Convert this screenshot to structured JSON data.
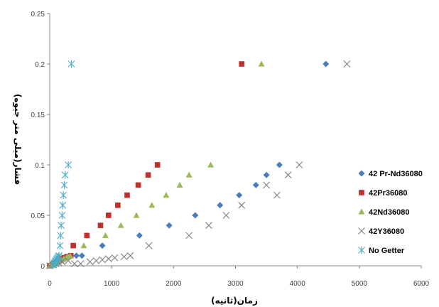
{
  "chart_data": {
    "type": "scatter",
    "xlabel": "زمان(ثانیه)",
    "ylabel": "فشار(میلی متر جیوه)",
    "xlim": [
      0,
      6000
    ],
    "ylim": [
      0,
      0.25
    ],
    "x_ticks": [
      "0",
      "1000",
      "2000",
      "3000",
      "4000",
      "5000",
      "6000"
    ],
    "y_ticks": [
      "0",
      "0.05",
      "0.1",
      "0.15",
      "0.2",
      "0.25"
    ],
    "grid": false,
    "legend_position": "right",
    "series": [
      {
        "name": "42 Pr-Nd36080",
        "color": "#4A7EBB",
        "marker": "diamond",
        "points": [
          [
            0,
            0
          ],
          [
            20,
            0.001
          ],
          [
            40,
            0.002
          ],
          [
            60,
            0.003
          ],
          [
            80,
            0.004
          ],
          [
            100,
            0.005
          ],
          [
            130,
            0.006
          ],
          [
            160,
            0.007
          ],
          [
            200,
            0.008
          ],
          [
            250,
            0.009
          ],
          [
            330,
            0.01
          ],
          [
            430,
            0.01
          ],
          [
            520,
            0.01
          ],
          [
            850,
            0.02
          ],
          [
            1450,
            0.03
          ],
          [
            1930,
            0.04
          ],
          [
            2350,
            0.05
          ],
          [
            2750,
            0.06
          ],
          [
            3060,
            0.07
          ],
          [
            3330,
            0.08
          ],
          [
            3500,
            0.09
          ],
          [
            3710,
            0.1
          ],
          [
            4460,
            0.2
          ]
        ]
      },
      {
        "name": "42Pr36080",
        "color": "#C0312E",
        "marker": "square",
        "points": [
          [
            0,
            0
          ],
          [
            40,
            0.001
          ],
          [
            70,
            0.002
          ],
          [
            100,
            0.003
          ],
          [
            130,
            0.004
          ],
          [
            160,
            0.005
          ],
          [
            190,
            0.006
          ],
          [
            220,
            0.007
          ],
          [
            250,
            0.008
          ],
          [
            290,
            0.009
          ],
          [
            340,
            0.01
          ],
          [
            380,
            0.02
          ],
          [
            600,
            0.03
          ],
          [
            820,
            0.04
          ],
          [
            950,
            0.05
          ],
          [
            1100,
            0.06
          ],
          [
            1250,
            0.07
          ],
          [
            1430,
            0.08
          ],
          [
            1590,
            0.09
          ],
          [
            1740,
            0.1
          ],
          [
            3100,
            0.2
          ]
        ]
      },
      {
        "name": "42Nd36080",
        "color": "#9BBB59",
        "marker": "triangle",
        "points": [
          [
            0,
            0
          ],
          [
            30,
            0.001
          ],
          [
            60,
            0.002
          ],
          [
            90,
            0.003
          ],
          [
            120,
            0.004
          ],
          [
            150,
            0.005
          ],
          [
            190,
            0.006
          ],
          [
            230,
            0.007
          ],
          [
            270,
            0.008
          ],
          [
            300,
            0.009
          ],
          [
            330,
            0.01
          ],
          [
            550,
            0.02
          ],
          [
            900,
            0.03
          ],
          [
            1150,
            0.04
          ],
          [
            1400,
            0.05
          ],
          [
            1650,
            0.06
          ],
          [
            1880,
            0.07
          ],
          [
            2100,
            0.08
          ],
          [
            2250,
            0.09
          ],
          [
            2600,
            0.1
          ],
          [
            3420,
            0.2
          ]
        ]
      },
      {
        "name": "42Y36080",
        "color": "#7F7F7F",
        "marker": "x",
        "points": [
          [
            0,
            0
          ],
          [
            50,
            0.001
          ],
          [
            100,
            0.002
          ],
          [
            150,
            0.003
          ],
          [
            200,
            0.004
          ],
          [
            300,
            0.005
          ],
          [
            400,
            0.002
          ],
          [
            500,
            0.002
          ],
          [
            650,
            0.004
          ],
          [
            750,
            0.005
          ],
          [
            850,
            0.006
          ],
          [
            950,
            0.007
          ],
          [
            1050,
            0.008
          ],
          [
            1200,
            0.009
          ],
          [
            1300,
            0.01
          ],
          [
            1600,
            0.02
          ],
          [
            2250,
            0.03
          ],
          [
            2570,
            0.04
          ],
          [
            2850,
            0.05
          ],
          [
            3100,
            0.06
          ],
          [
            3500,
            0.08
          ],
          [
            3670,
            0.07
          ],
          [
            3850,
            0.09
          ],
          [
            4030,
            0.1
          ],
          [
            4800,
            0.2
          ]
        ]
      },
      {
        "name": "No Getter",
        "color": "#4BACC6",
        "marker": "asterisk",
        "points": [
          [
            60,
            0.001
          ],
          [
            70,
            0.002
          ],
          [
            80,
            0.003
          ],
          [
            90,
            0.004
          ],
          [
            100,
            0.005
          ],
          [
            110,
            0.006
          ],
          [
            120,
            0.007
          ],
          [
            130,
            0.008
          ],
          [
            140,
            0.009
          ],
          [
            150,
            0.01
          ],
          [
            165,
            0.02
          ],
          [
            175,
            0.03
          ],
          [
            185,
            0.04
          ],
          [
            200,
            0.05
          ],
          [
            210,
            0.06
          ],
          [
            220,
            0.07
          ],
          [
            235,
            0.08
          ],
          [
            250,
            0.09
          ],
          [
            300,
            0.1
          ],
          [
            350,
            0.2
          ]
        ]
      }
    ]
  }
}
